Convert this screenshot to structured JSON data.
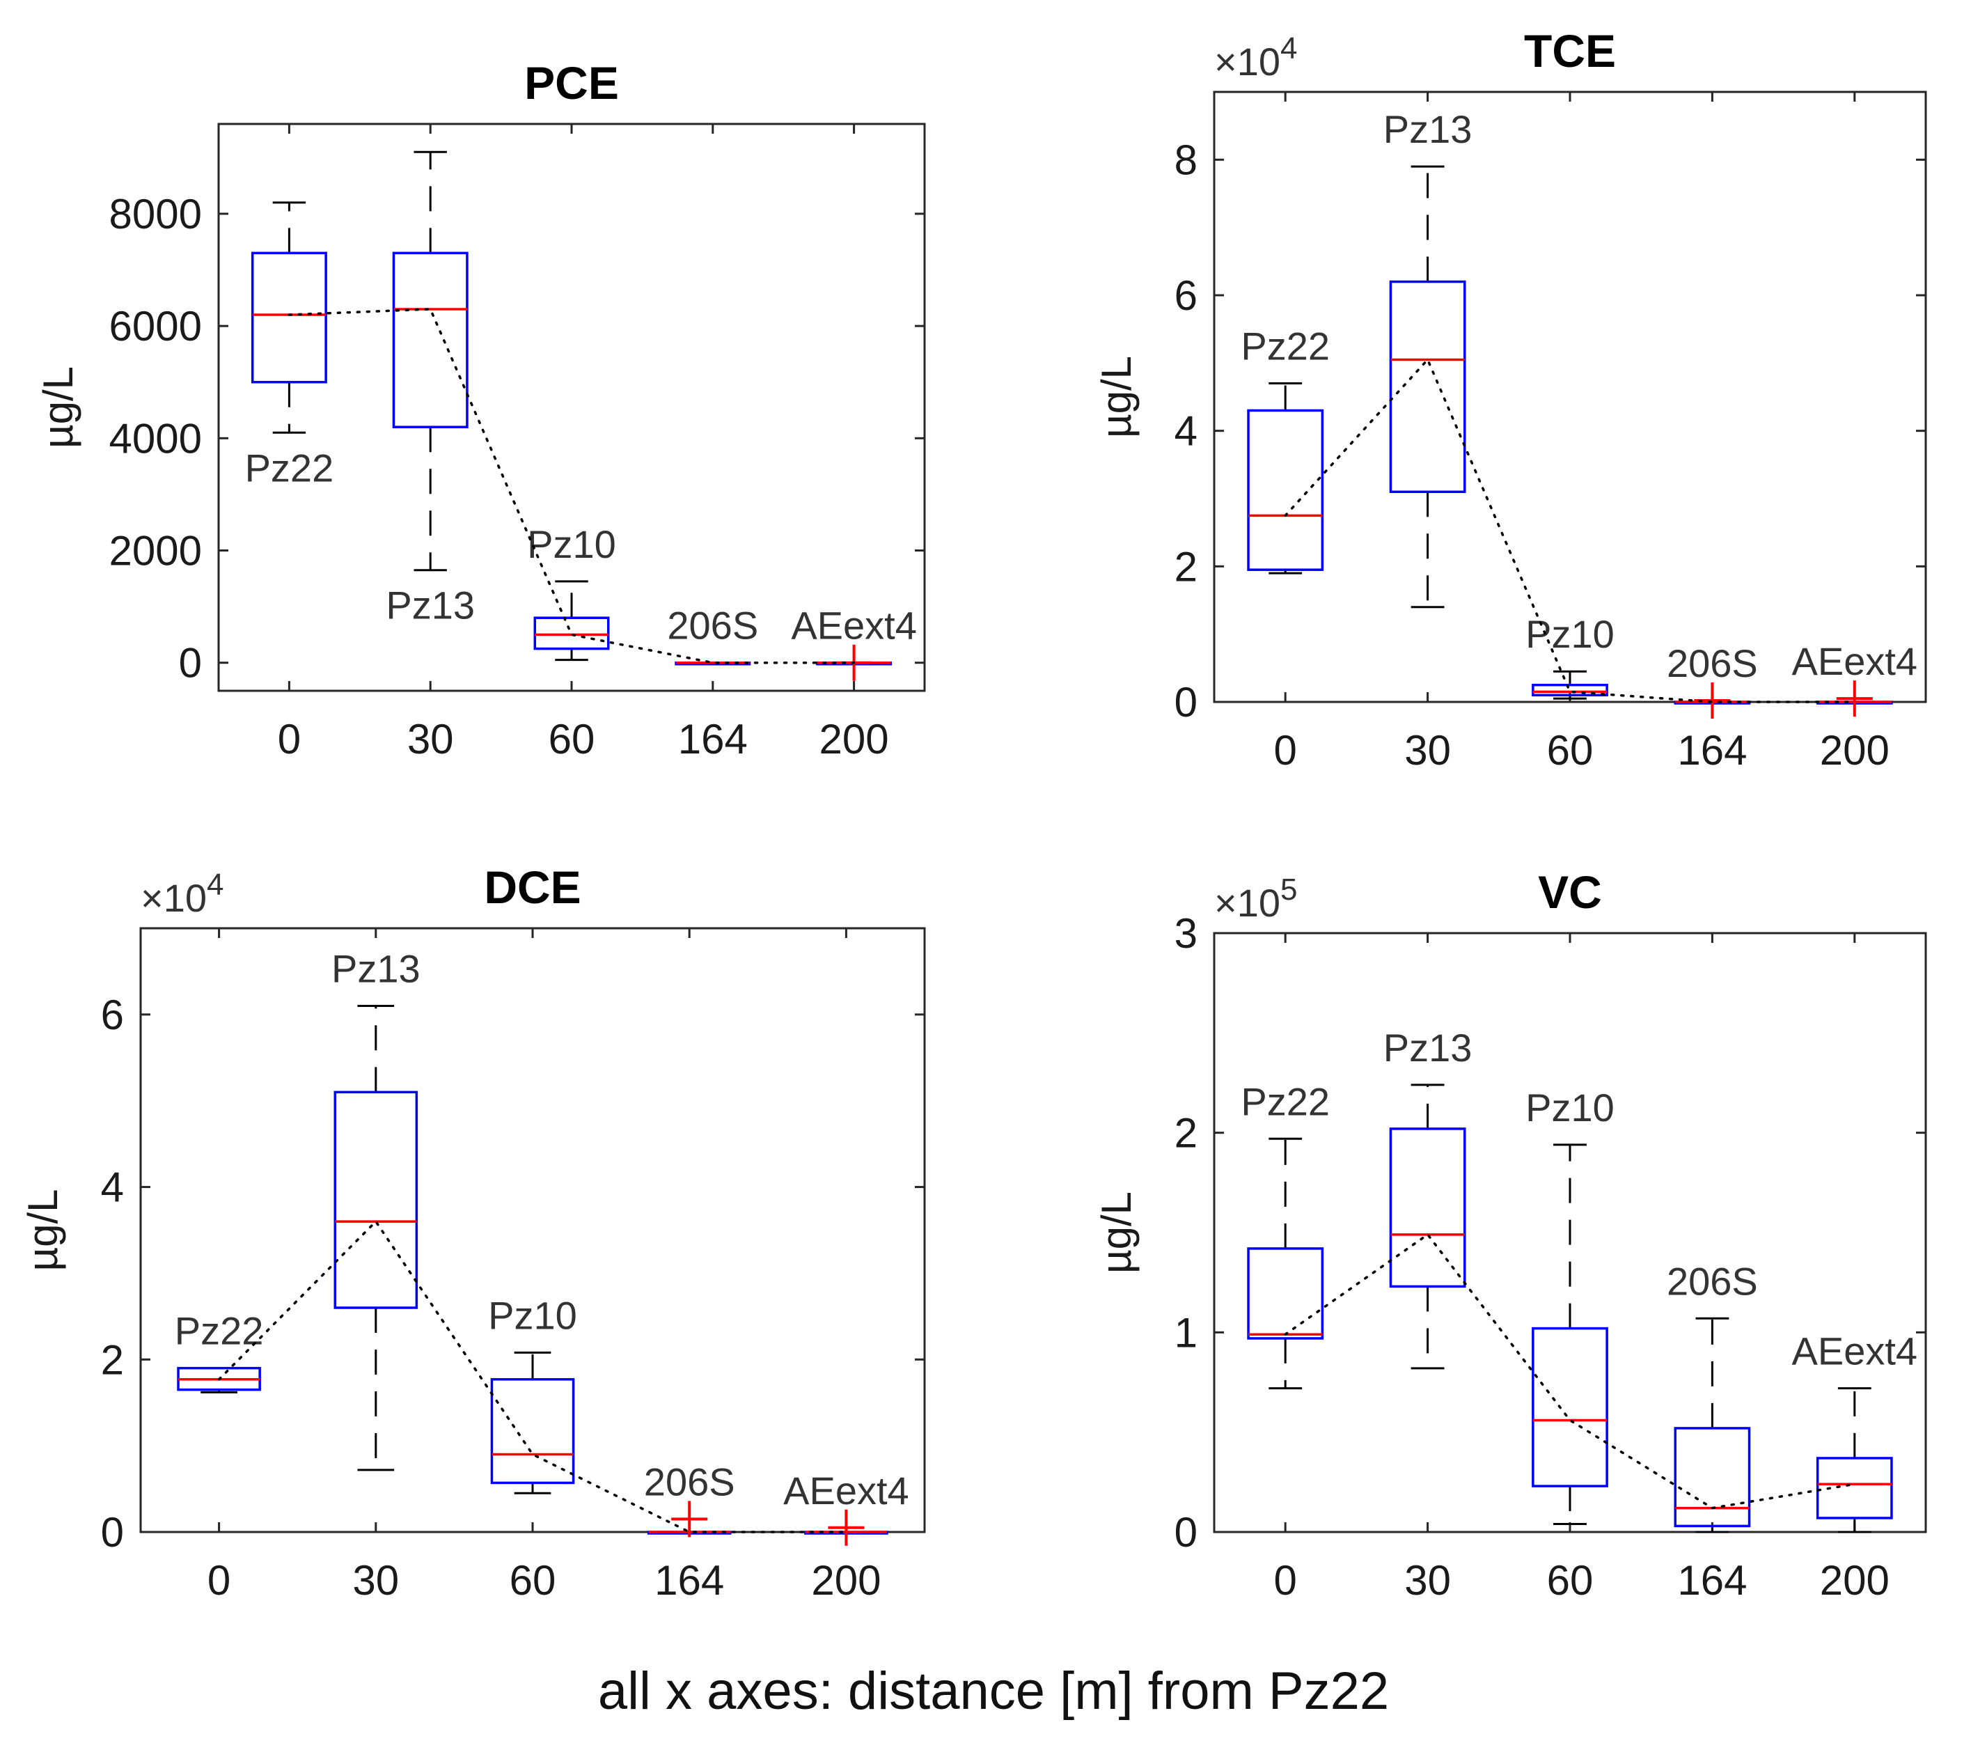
{
  "caption": "all x axes: distance [m] from Pz22",
  "colors": {
    "box": "#0000ff",
    "median": "#ff0000",
    "whisker": "#000000",
    "outlier": "#ff0000",
    "trend": "#000000"
  },
  "chart_data": [
    {
      "type": "box",
      "title": "PCE",
      "ylabel": "µg/L",
      "multiplier": "",
      "multiplier_exp": "",
      "categories": [
        "0",
        "30",
        "60",
        "164",
        "200"
      ],
      "ylim": [
        -500,
        9600
      ],
      "yticks": [
        0,
        2000,
        4000,
        6000,
        8000
      ],
      "ytick_labels": [
        "0",
        "2000",
        "4000",
        "6000",
        "8000"
      ],
      "boxes": [
        {
          "well": "Pz22",
          "label_pos": "below",
          "min": 4100,
          "q1": 5000,
          "median": 6200,
          "q3": 7300,
          "max": 8200,
          "outliers": []
        },
        {
          "well": "Pz13",
          "label_pos": "below",
          "min": 1650,
          "q1": 4200,
          "median": 6300,
          "q3": 7300,
          "max": 9100,
          "outliers": []
        },
        {
          "well": "Pz10",
          "label_pos": "above",
          "min": 50,
          "q1": 250,
          "median": 500,
          "q3": 800,
          "max": 1450,
          "outliers": []
        },
        {
          "well": "206S",
          "label_pos": "above",
          "min": 0,
          "q1": 0,
          "median": 0,
          "q3": 0,
          "max": 0,
          "outliers": []
        },
        {
          "well": "AEext4",
          "label_pos": "above",
          "min": 0,
          "q1": 0,
          "median": 0,
          "q3": 0,
          "max": 0,
          "outliers": [
            0
          ]
        }
      ],
      "trend": [
        6200,
        6300,
        500,
        0,
        0
      ]
    },
    {
      "type": "box",
      "title": "TCE",
      "ylabel": "µg/L",
      "multiplier": "×10",
      "multiplier_exp": "4",
      "categories": [
        "0",
        "30",
        "60",
        "164",
        "200"
      ],
      "ylim": [
        0,
        9
      ],
      "yticks": [
        0,
        2,
        4,
        6,
        8
      ],
      "ytick_labels": [
        "0",
        "2",
        "4",
        "6",
        "8"
      ],
      "boxes": [
        {
          "well": "Pz22",
          "label_pos": "above",
          "min": 1.9,
          "q1": 1.95,
          "median": 2.75,
          "q3": 4.3,
          "max": 4.7,
          "outliers": []
        },
        {
          "well": "Pz13",
          "label_pos": "above",
          "min": 1.4,
          "q1": 3.1,
          "median": 5.05,
          "q3": 6.2,
          "max": 7.9,
          "outliers": []
        },
        {
          "well": "Pz10",
          "label_pos": "above",
          "min": 0.05,
          "q1": 0.1,
          "median": 0.15,
          "q3": 0.25,
          "max": 0.45,
          "outliers": []
        },
        {
          "well": "206S",
          "label_pos": "above",
          "min": 0,
          "q1": 0,
          "median": 0,
          "q3": 0,
          "max": 0,
          "outliers": [
            0.02
          ]
        },
        {
          "well": "AEext4",
          "label_pos": "above",
          "min": 0,
          "q1": 0,
          "median": 0,
          "q3": 0,
          "max": 0,
          "outliers": [
            0.05
          ]
        }
      ],
      "trend": [
        2.75,
        5.05,
        0.15,
        0,
        0
      ]
    },
    {
      "type": "box",
      "title": "DCE",
      "ylabel": "µg/L",
      "multiplier": "×10",
      "multiplier_exp": "4",
      "categories": [
        "0",
        "30",
        "60",
        "164",
        "200"
      ],
      "ylim": [
        0,
        7
      ],
      "yticks": [
        0,
        2,
        4,
        6
      ],
      "ytick_labels": [
        "0",
        "2",
        "4",
        "6"
      ],
      "boxes": [
        {
          "well": "Pz22",
          "label_pos": "above",
          "min": 1.62,
          "q1": 1.65,
          "median": 1.77,
          "q3": 1.9,
          "max": 1.9,
          "outliers": []
        },
        {
          "well": "Pz13",
          "label_pos": "above",
          "min": 0.72,
          "q1": 2.6,
          "median": 3.6,
          "q3": 5.1,
          "max": 6.1,
          "outliers": []
        },
        {
          "well": "Pz10",
          "label_pos": "above",
          "min": 0.45,
          "q1": 0.57,
          "median": 0.9,
          "q3": 1.77,
          "max": 2.08,
          "outliers": []
        },
        {
          "well": "206S",
          "label_pos": "above",
          "min": 0,
          "q1": 0,
          "median": 0,
          "q3": 0,
          "max": 0,
          "outliers": [
            0.15
          ]
        },
        {
          "well": "AEext4",
          "label_pos": "above",
          "min": 0,
          "q1": 0,
          "median": 0,
          "q3": 0,
          "max": 0,
          "outliers": [
            0.05
          ]
        }
      ],
      "trend": [
        1.77,
        3.6,
        0.9,
        0,
        0
      ]
    },
    {
      "type": "box",
      "title": "VC",
      "ylabel": "µg/L",
      "multiplier": "×10",
      "multiplier_exp": "5",
      "categories": [
        "0",
        "30",
        "60",
        "164",
        "200"
      ],
      "ylim": [
        0,
        3
      ],
      "yticks": [
        0,
        1,
        2,
        3
      ],
      "ytick_labels": [
        "0",
        "1",
        "2",
        "3"
      ],
      "boxes": [
        {
          "well": "Pz22",
          "label_pos": "above",
          "min": 0.72,
          "q1": 0.97,
          "median": 0.99,
          "q3": 1.42,
          "max": 1.97,
          "outliers": []
        },
        {
          "well": "Pz13",
          "label_pos": "above",
          "min": 0.82,
          "q1": 1.23,
          "median": 1.49,
          "q3": 2.02,
          "max": 2.24,
          "outliers": []
        },
        {
          "well": "Pz10",
          "label_pos": "above",
          "min": 0.04,
          "q1": 0.23,
          "median": 0.56,
          "q3": 1.02,
          "max": 1.94,
          "outliers": []
        },
        {
          "well": "206S",
          "label_pos": "above",
          "min": 0.0,
          "q1": 0.03,
          "median": 0.12,
          "q3": 0.52,
          "max": 1.07,
          "outliers": []
        },
        {
          "well": "AEext4",
          "label_pos": "above",
          "min": 0.0,
          "q1": 0.07,
          "median": 0.24,
          "q3": 0.37,
          "max": 0.72,
          "outliers": []
        }
      ],
      "trend": [
        0.99,
        1.49,
        0.56,
        0.12,
        0.24
      ]
    }
  ]
}
